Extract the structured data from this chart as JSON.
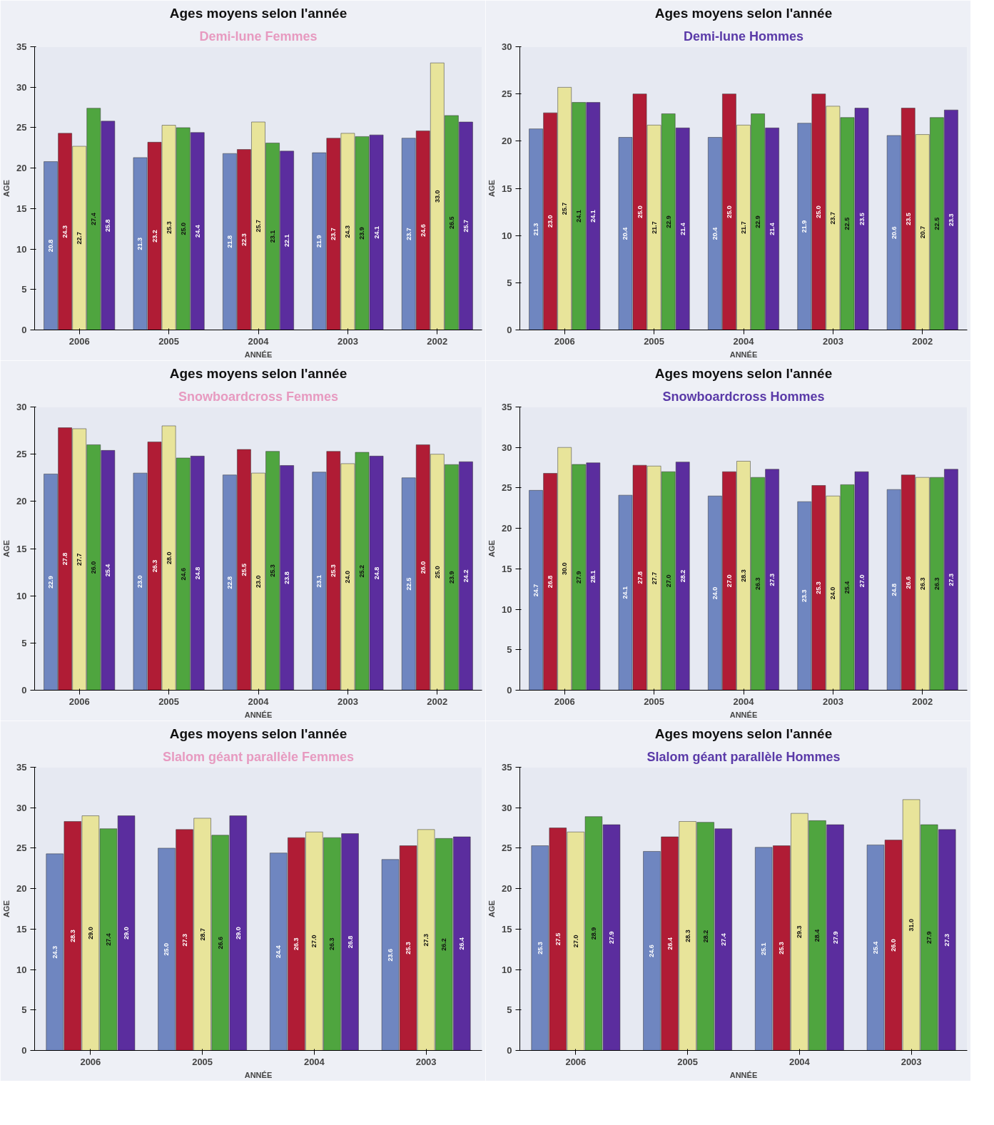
{
  "chart_data": [
    {
      "type": "bar",
      "title": "Ages moyens selon l'année",
      "subtitle": "Demi-lune Femmes",
      "xlabel": "ANNÉE",
      "ylabel": "AGE",
      "categories": [
        "2006",
        "2005",
        "2004",
        "2003",
        "2002"
      ],
      "ylim": [
        0,
        35
      ],
      "yticks": [
        0,
        5,
        10,
        15,
        20,
        25,
        30,
        35
      ],
      "series": [
        {
          "color": "#6f86c0",
          "values": [
            20.8,
            21.3,
            21.8,
            21.9,
            23.7
          ],
          "value_labels": [
            "20.8",
            "21.3",
            "21.8",
            "21.9",
            "23.7"
          ]
        },
        {
          "color": "#b01c35",
          "values": [
            24.3,
            23.2,
            22.3,
            23.7,
            24.6
          ],
          "value_labels": [
            "24.3",
            "23.2",
            "22.3",
            "23.7",
            "24.6"
          ]
        },
        {
          "color": "#e8e49a",
          "values": [
            22.7,
            25.3,
            25.7,
            24.3,
            33
          ],
          "value_labels": [
            "22.7",
            "25.3",
            "25.7",
            "24.3",
            "33.0"
          ]
        },
        {
          "color": "#4fa53f",
          "values": [
            27.4,
            25,
            23.1,
            23.9,
            26.5
          ],
          "value_labels": [
            "27.4",
            "25.0",
            "23.1",
            "23.9",
            "26.5"
          ]
        },
        {
          "color": "#5b2d9e",
          "values": [
            25.8,
            24.4,
            22.1,
            24.1,
            25.7
          ],
          "value_labels": [
            "25.8",
            "24.4",
            "22.1",
            "24.1",
            "25.7"
          ]
        }
      ]
    },
    {
      "type": "bar",
      "title": "Ages moyens selon l'année",
      "subtitle": "Demi-lune Hommes",
      "xlabel": "ANNÉE",
      "ylabel": "AGE",
      "categories": [
        "2006",
        "2005",
        "2004",
        "2003",
        "2002"
      ],
      "ylim": [
        0,
        30
      ],
      "yticks": [
        0,
        5,
        10,
        15,
        20,
        25,
        30
      ],
      "series": [
        {
          "color": "#6f86c0",
          "values": [
            21.3,
            20.4,
            20.4,
            21.9,
            20.6
          ],
          "value_labels": [
            "21.3",
            "20.4",
            "20.4",
            "21.9",
            "20.6"
          ]
        },
        {
          "color": "#b01c35",
          "values": [
            23,
            25,
            25,
            25,
            23.5
          ],
          "value_labels": [
            "23.0",
            "25.0",
            "25.0",
            "25.0",
            "23.5"
          ]
        },
        {
          "color": "#e8e49a",
          "values": [
            25.7,
            21.7,
            21.7,
            23.7,
            20.7
          ],
          "value_labels": [
            "25.7",
            "21.7",
            "21.7",
            "23.7",
            "20.7"
          ]
        },
        {
          "color": "#4fa53f",
          "values": [
            24.1,
            22.9,
            22.9,
            22.5,
            22.5
          ],
          "value_labels": [
            "24.1",
            "22.9",
            "22.9",
            "22.5",
            "22.5"
          ]
        },
        {
          "color": "#5b2d9e",
          "values": [
            24.1,
            21.4,
            21.4,
            23.5,
            23.3
          ],
          "value_labels": [
            "24.1",
            "21.4",
            "21.4",
            "23.5",
            "23.3"
          ]
        }
      ]
    },
    {
      "type": "bar",
      "title": "Ages moyens selon l'année",
      "subtitle": "Snowboardcross Femmes",
      "xlabel": "ANNÉE",
      "ylabel": "AGE",
      "categories": [
        "2006",
        "2005",
        "2004",
        "2003",
        "2002"
      ],
      "ylim": [
        0,
        30
      ],
      "yticks": [
        0,
        5,
        10,
        15,
        20,
        25,
        30
      ],
      "series": [
        {
          "color": "#6f86c0",
          "values": [
            22.9,
            23,
            22.8,
            23.1,
            22.5
          ],
          "value_labels": [
            "22.9",
            "23.0",
            "22.8",
            "23.1",
            "22.5"
          ]
        },
        {
          "color": "#b01c35",
          "values": [
            27.8,
            26.3,
            25.5,
            25.3,
            26
          ],
          "value_labels": [
            "27.8",
            "26.3",
            "25.5",
            "25.3",
            "26.0"
          ]
        },
        {
          "color": "#e8e49a",
          "values": [
            27.7,
            28,
            23,
            24,
            25
          ],
          "value_labels": [
            "27.7",
            "28.0",
            "23.0",
            "24.0",
            "25.0"
          ]
        },
        {
          "color": "#4fa53f",
          "values": [
            26,
            24.6,
            25.3,
            25.2,
            23.9
          ],
          "value_labels": [
            "26.0",
            "24.6",
            "25.3",
            "25.2",
            "23.9"
          ]
        },
        {
          "color": "#5b2d9e",
          "values": [
            25.4,
            24.8,
            23.8,
            24.8,
            24.2
          ],
          "value_labels": [
            "25.4",
            "24.8",
            "23.8",
            "24.8",
            "24.2"
          ]
        }
      ]
    },
    {
      "type": "bar",
      "title": "Ages moyens selon l'année",
      "subtitle": "Snowboardcross Hommes",
      "xlabel": "ANNÉE",
      "ylabel": "AGE",
      "categories": [
        "2006",
        "2005",
        "2004",
        "2003",
        "2002"
      ],
      "ylim": [
        0,
        35
      ],
      "yticks": [
        0,
        5,
        10,
        15,
        20,
        25,
        30,
        35
      ],
      "series": [
        {
          "color": "#6f86c0",
          "values": [
            24.7,
            24.1,
            24,
            23.3,
            24.8
          ],
          "value_labels": [
            "24.7",
            "24.1",
            "24.0",
            "23.3",
            "24.8"
          ]
        },
        {
          "color": "#b01c35",
          "values": [
            26.8,
            27.8,
            27,
            25.3,
            26.6
          ],
          "value_labels": [
            "26.8",
            "27.8",
            "27.0",
            "25.3",
            "26.6"
          ]
        },
        {
          "color": "#e8e49a",
          "values": [
            30,
            27.7,
            28.3,
            24,
            26.3
          ],
          "value_labels": [
            "30.0",
            "27.7",
            "28.3",
            "24.0",
            "26.3"
          ]
        },
        {
          "color": "#4fa53f",
          "values": [
            27.9,
            27,
            26.3,
            25.4,
            26.3
          ],
          "value_labels": [
            "27.9",
            "27.0",
            "26.3",
            "25.4",
            "26.3"
          ]
        },
        {
          "color": "#5b2d9e",
          "values": [
            28.1,
            28.2,
            27.3,
            27,
            27.3
          ],
          "value_labels": [
            "28.1",
            "28.2",
            "27.3",
            "27.0",
            "27.3"
          ]
        }
      ]
    },
    {
      "type": "bar",
      "title": "Ages moyens selon l'année",
      "subtitle": "Slalom géant parallèle Femmes",
      "xlabel": "ANNÉE",
      "ylabel": "AGE",
      "categories": [
        "2006",
        "2005",
        "2004",
        "2003"
      ],
      "ylim": [
        0,
        35
      ],
      "yticks": [
        0,
        5,
        10,
        15,
        20,
        25,
        30,
        35
      ],
      "series": [
        {
          "color": "#6f86c0",
          "values": [
            24.3,
            25,
            24.4,
            23.6
          ],
          "value_labels": [
            "24.3",
            "25.0",
            "24.4",
            "23.6"
          ]
        },
        {
          "color": "#b01c35",
          "values": [
            28.3,
            27.3,
            26.3,
            25.3
          ],
          "value_labels": [
            "28.3",
            "27.3",
            "26.3",
            "25.3"
          ]
        },
        {
          "color": "#e8e49a",
          "values": [
            29,
            28.7,
            27,
            27.3
          ],
          "value_labels": [
            "29.0",
            "28.7",
            "27.0",
            "27.3"
          ]
        },
        {
          "color": "#4fa53f",
          "values": [
            27.4,
            26.6,
            26.3,
            26.2
          ],
          "value_labels": [
            "27.4",
            "26.6",
            "26.3",
            "26.2"
          ]
        },
        {
          "color": "#5b2d9e",
          "values": [
            29,
            29,
            26.8,
            26.4
          ],
          "value_labels": [
            "29.0",
            "29.0",
            "26.8",
            "26.4"
          ]
        }
      ]
    },
    {
      "type": "bar",
      "title": "Ages moyens selon l'année",
      "subtitle": "Slalom géant parallèle Hommes",
      "xlabel": "ANNÉE",
      "ylabel": "AGE",
      "categories": [
        "2006",
        "2005",
        "2004",
        "2003"
      ],
      "ylim": [
        0,
        35
      ],
      "yticks": [
        0,
        5,
        10,
        15,
        20,
        25,
        30,
        35
      ],
      "series": [
        {
          "color": "#6f86c0",
          "values": [
            25.3,
            24.6,
            25.1,
            25.4
          ],
          "value_labels": [
            "25.3",
            "24.6",
            "25.1",
            "25.4"
          ]
        },
        {
          "color": "#b01c35",
          "values": [
            27.5,
            26.4,
            25.3,
            26
          ],
          "value_labels": [
            "27.5",
            "26.4",
            "25.3",
            "26.0"
          ]
        },
        {
          "color": "#e8e49a",
          "values": [
            27,
            28.3,
            29.3,
            31
          ],
          "value_labels": [
            "27.0",
            "28.3",
            "29.3",
            "31.0"
          ]
        },
        {
          "color": "#4fa53f",
          "values": [
            28.9,
            28.2,
            28.4,
            27.9
          ],
          "value_labels": [
            "28.9",
            "28.2",
            "28.4",
            "27.9"
          ]
        },
        {
          "color": "#5b2d9e",
          "values": [
            27.9,
            27.4,
            27.9,
            27.3
          ],
          "value_labels": [
            "27.9",
            "27.4",
            "27.9",
            "27.3"
          ]
        }
      ]
    }
  ]
}
